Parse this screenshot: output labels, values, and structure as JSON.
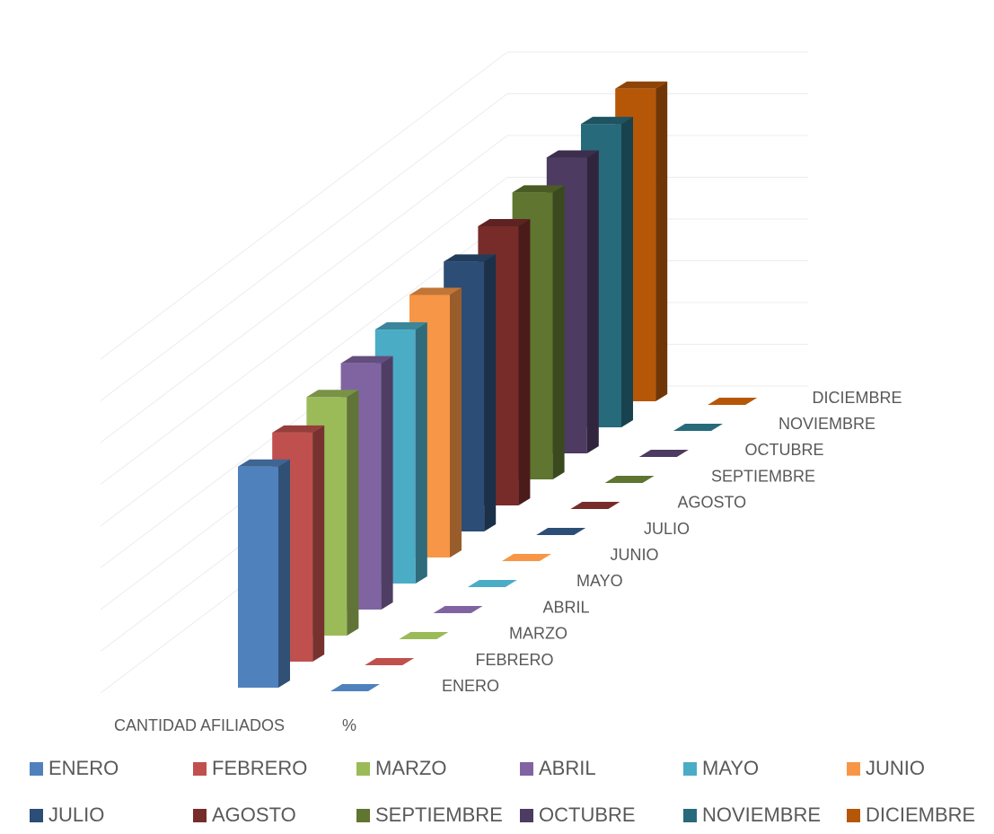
{
  "chart_data": {
    "type": "bar",
    "style": "3d-column",
    "categories": [
      "CANTIDAD AFILIADOS",
      "%"
    ],
    "series": [
      {
        "name": "ENERO",
        "color": "#4F81BD",
        "values": [
          1000,
          0
        ]
      },
      {
        "name": "FEBRERO",
        "color": "#C0504D",
        "values": [
          1036,
          0
        ]
      },
      {
        "name": "MARZO",
        "color": "#9BBB59",
        "values": [
          1079,
          0
        ]
      },
      {
        "name": "ABRIL",
        "color": "#8064A2",
        "values": [
          1114,
          0
        ]
      },
      {
        "name": "MAYO",
        "color": "#4BACC6",
        "values": [
          1149,
          0
        ]
      },
      {
        "name": "JUNIO",
        "color": "#F79646",
        "values": [
          1188,
          0
        ]
      },
      {
        "name": "JULIO",
        "color": "#2C4D75",
        "values": [
          1221,
          0
        ]
      },
      {
        "name": "AGOSTO",
        "color": "#772C2A",
        "values": [
          1263,
          0
        ]
      },
      {
        "name": "SEPTIEMBRE",
        "color": "#5F7530",
        "values": [
          1298,
          0
        ]
      },
      {
        "name": "OCTUBRE",
        "color": "#4D3B62",
        "values": [
          1338,
          0
        ]
      },
      {
        "name": "NOVIEMBRE",
        "color": "#276A7C",
        "values": [
          1372,
          0
        ]
      },
      {
        "name": "DICIEMBRE",
        "color": "#B65708",
        "values": [
          1414,
          0
        ]
      }
    ],
    "ylim": [
      0,
      1600
    ],
    "grid": true,
    "legend": "bottom"
  }
}
